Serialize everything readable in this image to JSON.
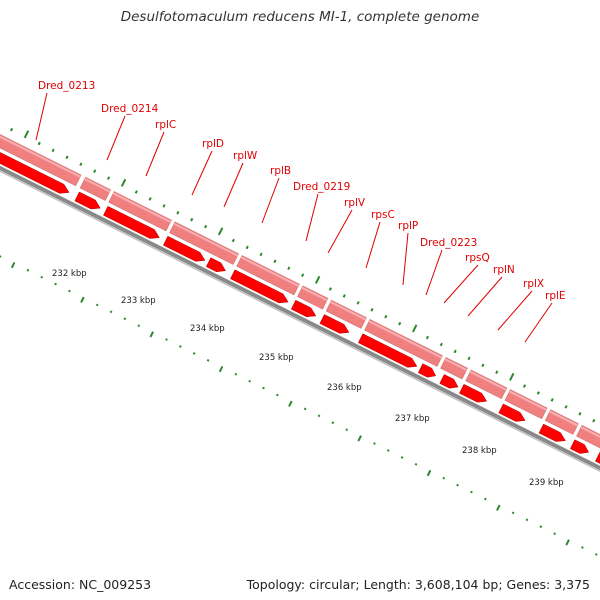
{
  "title": "Desulfotomaculum reducens MI-1, complete genome",
  "footer": {
    "accession": "Accession: NC_009253",
    "summary": "Topology: circular; Length: 3,608,104 bp; Genes: 3,375"
  },
  "colors": {
    "gene_strand_outer": "#f08080",
    "gene_strand_inner": "#ff0000",
    "backbone": "#888888",
    "tick": "#2a8a2a",
    "label_line": "#e00000"
  },
  "genes": [
    {
      "label": "Dred_0213"
    },
    {
      "label": "Dred_0214"
    },
    {
      "label": "rplC"
    },
    {
      "label": "rplD"
    },
    {
      "label": "rplW"
    },
    {
      "label": "rplB"
    },
    {
      "label": "Dred_0219"
    },
    {
      "label": "rplV"
    },
    {
      "label": "rpsC"
    },
    {
      "label": "rplP"
    },
    {
      "label": "Dred_0223"
    },
    {
      "label": "rpsQ"
    },
    {
      "label": "rplN"
    },
    {
      "label": "rplX"
    },
    {
      "label": "rplE"
    }
  ],
  "scale": [
    {
      "label": "232 kbp"
    },
    {
      "label": "233 kbp"
    },
    {
      "label": "234 kbp"
    },
    {
      "label": "235 kbp"
    },
    {
      "label": "236 kbp"
    },
    {
      "label": "237 kbp"
    },
    {
      "label": "238 kbp"
    },
    {
      "label": "239 kbp"
    }
  ]
}
